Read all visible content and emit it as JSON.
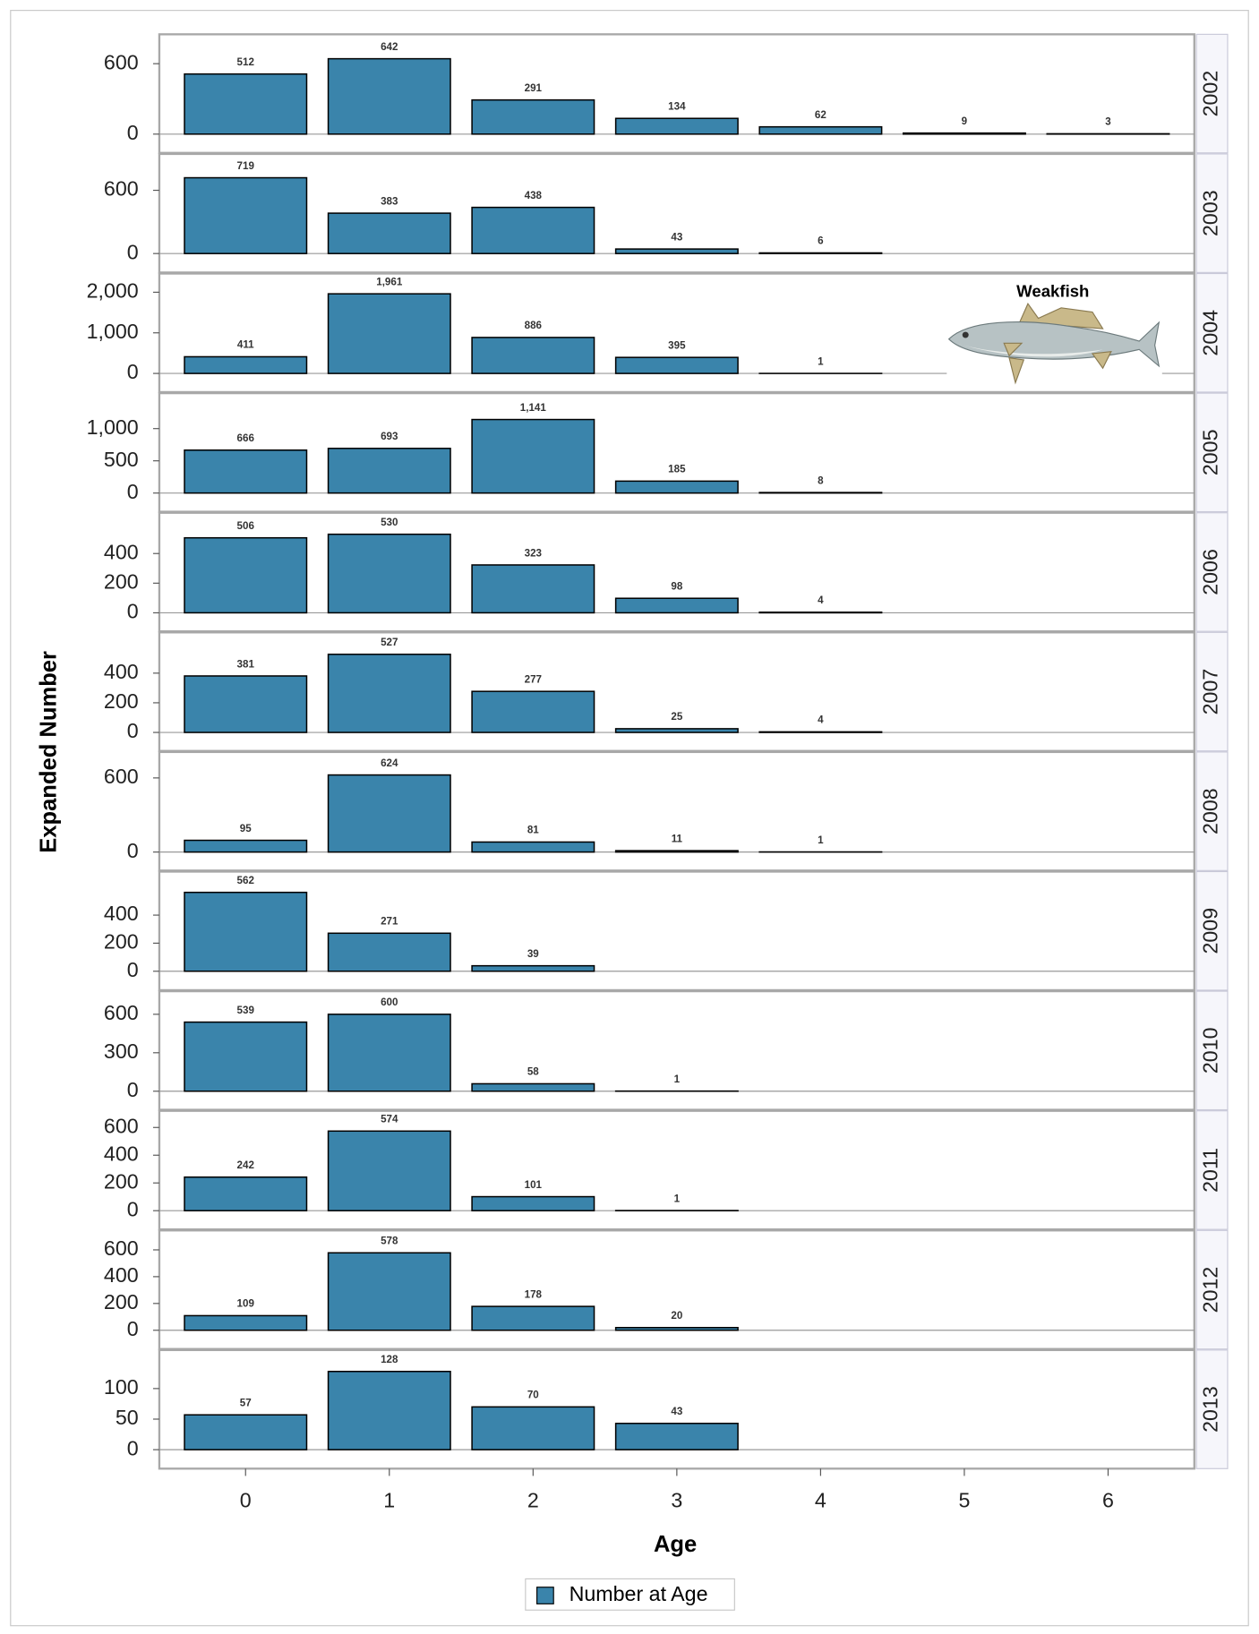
{
  "chart_data": {
    "type": "bar",
    "xlabel": "Age",
    "ylabel": "Expanded Number",
    "series_name": "Number at Age",
    "color": "#3a84ab",
    "annotation": "Weakfish",
    "x": [
      0,
      1,
      2,
      3,
      4,
      5,
      6
    ],
    "xlim": [
      -0.6,
      6.6
    ],
    "xticks": [
      0,
      1,
      2,
      3,
      4,
      5,
      6
    ],
    "panels": [
      {
        "label": "2002",
        "values": [
          512,
          642,
          291,
          134,
          62,
          9,
          3
        ],
        "ylim": [
          -160,
          850
        ],
        "yticks": [
          0,
          600
        ]
      },
      {
        "label": "2003",
        "values": [
          719,
          383,
          438,
          43,
          6,
          null,
          null
        ],
        "ylim": [
          -180,
          945
        ],
        "yticks": [
          0,
          600
        ]
      },
      {
        "label": "2004",
        "values": [
          411,
          1961,
          886,
          395,
          1,
          null,
          null
        ],
        "value_labels": [
          "411",
          "1,961",
          "886",
          "395",
          "1",
          null,
          null
        ],
        "ylim": [
          -460,
          2460
        ],
        "yticks": [
          0,
          {
            "value": 1000,
            "label": "1,000"
          },
          {
            "value": 2000,
            "label": "2,000"
          }
        ]
      },
      {
        "label": "2005",
        "values": [
          666,
          693,
          1141,
          185,
          8,
          null,
          null
        ],
        "value_labels": [
          "666",
          "693",
          "1,141",
          "185",
          "8",
          null,
          null
        ],
        "ylim": [
          -290,
          1550
        ],
        "yticks": [
          0,
          500,
          {
            "value": 1000,
            "label": "1,000"
          }
        ]
      },
      {
        "label": "2006",
        "values": [
          506,
          530,
          323,
          98,
          4,
          null,
          null
        ],
        "ylim": [
          -125,
          675
        ],
        "yticks": [
          0,
          200,
          400
        ]
      },
      {
        "label": "2007",
        "values": [
          381,
          527,
          277,
          25,
          4,
          null,
          null
        ],
        "ylim": [
          -125,
          675
        ],
        "yticks": [
          0,
          200,
          400
        ]
      },
      {
        "label": "2008",
        "values": [
          95,
          624,
          81,
          11,
          1,
          null,
          null
        ],
        "ylim": [
          -150,
          810
        ],
        "yticks": [
          0,
          600
        ]
      },
      {
        "label": "2009",
        "values": [
          562,
          271,
          39,
          null,
          null,
          null,
          null
        ],
        "ylim": [
          -135,
          710
        ],
        "yticks": [
          0,
          200,
          400
        ]
      },
      {
        "label": "2010",
        "values": [
          539,
          600,
          58,
          1,
          null,
          null,
          null
        ],
        "ylim": [
          -145,
          780
        ],
        "yticks": [
          0,
          300,
          600
        ]
      },
      {
        "label": "2011",
        "values": [
          242,
          574,
          101,
          1,
          null,
          null,
          null
        ],
        "ylim": [
          -135,
          720
        ],
        "yticks": [
          0,
          200,
          400,
          600
        ]
      },
      {
        "label": "2012",
        "values": [
          109,
          578,
          178,
          20,
          null,
          null,
          null
        ],
        "ylim": [
          -140,
          745
        ],
        "yticks": [
          0,
          200,
          400,
          600
        ]
      },
      {
        "label": "2013",
        "values": [
          57,
          128,
          70,
          43,
          null,
          null,
          null
        ],
        "ylim": [
          -31,
          163
        ],
        "yticks": [
          0,
          50,
          100
        ]
      }
    ]
  }
}
